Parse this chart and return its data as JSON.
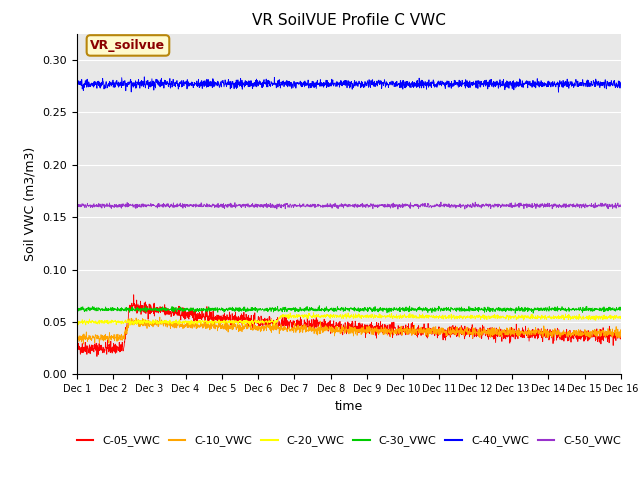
{
  "title": "VR SoilVUE Profile C VWC",
  "ylabel": "Soil VWC (m3/m3)",
  "xlabel": "time",
  "xlim_days": [
    1,
    16
  ],
  "ylim": [
    0.0,
    0.325
  ],
  "yticks": [
    0.0,
    0.05,
    0.1,
    0.15,
    0.2,
    0.25,
    0.3
  ],
  "x_tick_labels": [
    "Dec 1",
    "Dec 2",
    "Dec 3",
    "Dec 4",
    "Dec 5",
    "Dec 6",
    "Dec 7",
    "Dec 8",
    "Dec 9",
    "Dec 10",
    "Dec 11",
    "Dec 12",
    "Dec 13",
    "Dec 14",
    "Dec 15",
    "Dec 16"
  ],
  "annotation_box": "VR_soilvue",
  "annotation_color": "#8B0000",
  "annotation_bg": "#FFFACD",
  "series": {
    "C-05_VWC": {
      "color": "#FF0000",
      "base": 0.025,
      "noise": 0.003,
      "event_day": 2.3,
      "post_event": 0.065,
      "post_decay": 0.033,
      "label": "C-05_VWC"
    },
    "C-10_VWC": {
      "color": "#FFA500",
      "base": 0.035,
      "noise": 0.002,
      "event_day": 2.3,
      "post_event": 0.05,
      "post_decay": 0.038,
      "label": "C-10_VWC"
    },
    "C-20_VWC": {
      "color": "#FFFF00",
      "base": 0.05,
      "noise": 0.001,
      "event_day": 6.5,
      "post_event": 0.056,
      "post_decay": 0.054,
      "label": "C-20_VWC"
    },
    "C-30_VWC": {
      "color": "#00CC00",
      "base": 0.062,
      "noise": 0.001,
      "event_day": null,
      "post_event": null,
      "post_decay": null,
      "label": "C-30_VWC"
    },
    "C-40_VWC": {
      "color": "#0000FF",
      "base": 0.277,
      "noise": 0.002,
      "event_day": null,
      "post_event": null,
      "post_decay": null,
      "label": "C-40_VWC"
    },
    "C-50_VWC": {
      "color": "#9932CC",
      "base": 0.161,
      "noise": 0.001,
      "event_day": null,
      "post_event": null,
      "post_decay": null,
      "label": "C-50_VWC"
    }
  },
  "legend_order": [
    "C-05_VWC",
    "C-10_VWC",
    "C-20_VWC",
    "C-30_VWC",
    "C-40_VWC",
    "C-50_VWC"
  ],
  "background_color": "#E8E8E8",
  "n_points": 2000,
  "figsize": [
    6.4,
    4.8
  ],
  "dpi": 100
}
